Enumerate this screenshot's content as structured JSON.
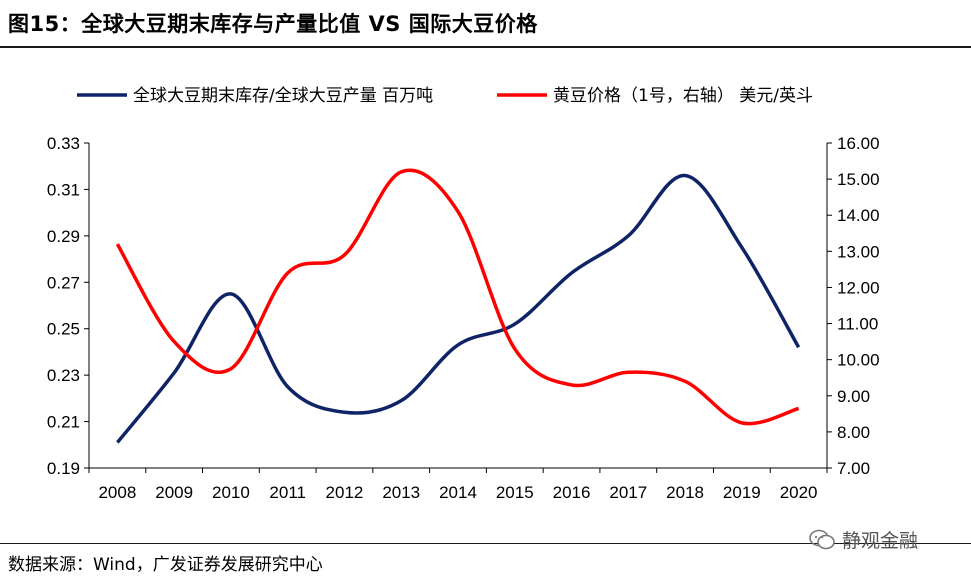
{
  "header": {
    "title": "图15：全球大豆期末库存与产量比值 VS 国际大豆价格"
  },
  "footer": {
    "source": "数据来源：Wind，广发证券发展研究中心",
    "watermark": "静观金融"
  },
  "chart_data": {
    "type": "line",
    "categories": [
      "2008",
      "2009",
      "2010",
      "2011",
      "2012",
      "2013",
      "2014",
      "2015",
      "2016",
      "2017",
      "2018",
      "2019",
      "2020"
    ],
    "x_tick_labels": [
      "2008",
      "2009",
      "2010",
      "2011",
      "2012",
      "2013",
      "2014",
      "2015",
      "2016",
      "2017",
      "2018",
      "2019",
      "2020"
    ],
    "series": [
      {
        "name": "全球大豆期末库存/全球大豆产量 百万吨",
        "axis": "left",
        "color": "#0f2466",
        "values": [
          0.201,
          0.231,
          0.265,
          0.225,
          0.214,
          0.219,
          0.243,
          0.252,
          0.274,
          0.29,
          0.316,
          0.285,
          0.242
        ]
      },
      {
        "name": "黄豆价格（1号，右轴） 美元/英斗",
        "axis": "right",
        "color": "#ff0000",
        "values": [
          13.2,
          10.5,
          9.75,
          12.4,
          12.9,
          15.2,
          14.1,
          10.3,
          9.3,
          9.65,
          9.4,
          8.25,
          8.65
        ]
      }
    ],
    "y_left": {
      "min": 0.19,
      "max": 0.33,
      "ticks": [
        "0.19",
        "0.21",
        "0.23",
        "0.25",
        "0.27",
        "0.29",
        "0.31",
        "0.33"
      ]
    },
    "y_right": {
      "min": 7.0,
      "max": 16.0,
      "ticks": [
        "7.00",
        "8.00",
        "9.00",
        "10.00",
        "11.00",
        "12.00",
        "13.00",
        "14.00",
        "15.00",
        "16.00"
      ]
    },
    "grid": false,
    "legend_position": "top"
  }
}
